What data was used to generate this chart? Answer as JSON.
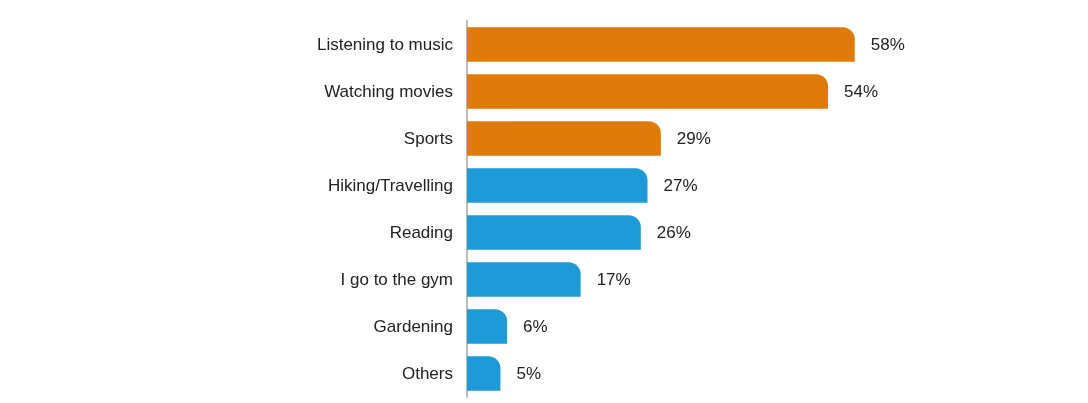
{
  "chart_data": {
    "type": "bar",
    "orientation": "horizontal",
    "categories": [
      "Listening to music",
      "Watching movies",
      "Sports",
      "Hiking/Travelling",
      "Reading",
      "I go to the gym",
      "Gardening",
      "Others"
    ],
    "values": [
      58,
      54,
      29,
      27,
      26,
      17,
      6,
      5
    ],
    "colors": [
      "#e07b0a",
      "#e07b0a",
      "#e07b0a",
      "#1e9bd7",
      "#1e9bd7",
      "#1e9bd7",
      "#1e9bd7",
      "#1e9bd7"
    ],
    "value_labels": [
      "58%",
      "54%",
      "29%",
      "27%",
      "26%",
      "17%",
      "6%",
      "5%"
    ]
  }
}
